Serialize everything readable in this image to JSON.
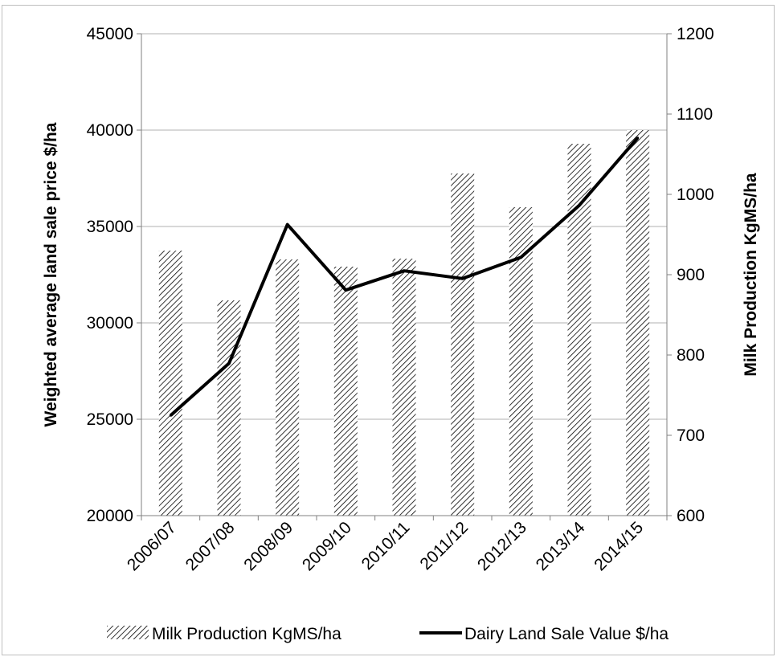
{
  "chart_data": {
    "type": "bar+line",
    "categories": [
      "2006/07",
      "2007/08",
      "2008/09",
      "2009/10",
      "2010/11",
      "2011/12",
      "2012/13",
      "2013/14",
      "2014/15"
    ],
    "series": [
      {
        "name": "Milk Production KgMS/ha",
        "type": "bar",
        "axis": "right",
        "pattern": "diagonal-hatch",
        "values": [
          930,
          868,
          919,
          910,
          920,
          1026,
          984,
          1063,
          1080
        ]
      },
      {
        "name": "Dairy Land Sale Value $/ha",
        "type": "line",
        "axis": "left",
        "color": "#000000",
        "values": [
          25200,
          27900,
          35100,
          31700,
          32700,
          32300,
          33400,
          36100,
          39600
        ]
      }
    ],
    "y_left": {
      "label": "Weighted average land sale price $/ha",
      "ylim": [
        20000,
        45000
      ],
      "ticks": [
        "20000",
        "25000",
        "30000",
        "35000",
        "40000",
        "45000"
      ]
    },
    "y_right": {
      "label": "Milk Production KgMS/ha",
      "ylim": [
        600,
        1200
      ],
      "ticks": [
        "600",
        "700",
        "800",
        "900",
        "1000",
        "1100",
        "1200"
      ]
    },
    "grid": true,
    "legend": "bottom"
  }
}
